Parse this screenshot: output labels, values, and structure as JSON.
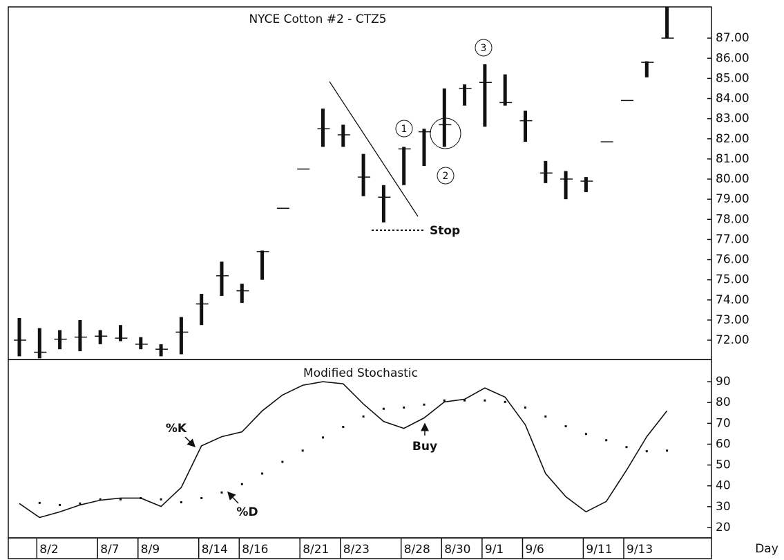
{
  "chart_data": [
    {
      "type": "ohlc",
      "title": "NYCE Cotton #2 - CTZ5",
      "color": "#111111",
      "high": [
        73.1,
        72.6,
        72.5,
        73.0,
        72.5,
        72.75,
        72.15,
        71.8,
        73.15,
        74.3,
        75.9,
        74.8,
        76.45,
        78.55,
        80.5,
        83.5,
        82.7,
        81.25,
        79.7,
        81.6,
        82.5,
        84.5,
        84.7,
        85.7,
        85.2,
        83.4,
        80.9,
        80.4,
        80.1,
        81.85,
        83.9,
        85.85,
        88.55
      ],
      "low": [
        71.2,
        71.1,
        71.55,
        71.45,
        71.8,
        71.95,
        71.55,
        71.2,
        71.3,
        72.75,
        74.2,
        73.85,
        75.0,
        78.55,
        80.5,
        81.6,
        81.6,
        79.15,
        77.85,
        79.7,
        80.65,
        81.6,
        83.65,
        82.6,
        83.65,
        81.85,
        79.8,
        79.0,
        79.35,
        81.85,
        83.9,
        85.05,
        87.0
      ],
      "close": [
        72.0,
        71.4,
        72.05,
        72.15,
        72.2,
        72.1,
        71.8,
        71.55,
        72.4,
        73.8,
        75.2,
        74.45,
        76.4,
        78.55,
        80.5,
        82.5,
        82.2,
        80.1,
        79.1,
        81.5,
        82.35,
        82.7,
        84.5,
        84.8,
        83.8,
        82.9,
        80.3,
        80.0,
        79.9,
        81.85,
        83.9,
        85.8,
        87.0
      ],
      "ylim": [
        71.04,
        88.55
      ],
      "yticks": [
        {
          "value": 72,
          "label": "72.00"
        },
        {
          "value": 73,
          "label": "73.00"
        },
        {
          "value": 74,
          "label": "74.00"
        },
        {
          "value": 75,
          "label": "75.00"
        },
        {
          "value": 76,
          "label": "76.00"
        },
        {
          "value": 77,
          "label": "77.00"
        },
        {
          "value": 78,
          "label": "78.00"
        },
        {
          "value": 79,
          "label": "79.00"
        },
        {
          "value": 80,
          "label": "80.00"
        },
        {
          "value": 81,
          "label": "81.00"
        },
        {
          "value": 82,
          "label": "82.00"
        },
        {
          "value": 83,
          "label": "83.00"
        },
        {
          "value": 84,
          "label": "84.00"
        },
        {
          "value": 85,
          "label": "85.00"
        },
        {
          "value": 86,
          "label": "86.00"
        },
        {
          "value": 87,
          "label": "87.00"
        }
      ],
      "annotations": [
        "1",
        "2",
        "3",
        "Stop"
      ]
    },
    {
      "type": "line",
      "title": "Modified Stochastic",
      "xlabel": "Day",
      "categories": [
        null,
        "8/2",
        null,
        null,
        "8/7",
        null,
        "8/9",
        null,
        null,
        "8/14",
        null,
        "8/16",
        null,
        null,
        "8/21",
        null,
        "8/23",
        null,
        null,
        "8/28",
        null,
        "8/30",
        null,
        "9/1",
        null,
        "9/6",
        null,
        null,
        "9/11",
        null,
        "9/13",
        null,
        null
      ],
      "series": [
        {
          "name": "%K",
          "color": "#111111",
          "values": [
            31.5,
            24.8,
            27.5,
            30.8,
            33.1,
            34.1,
            34.1,
            30.1,
            39.2,
            59.2,
            63.6,
            65.9,
            76,
            83.6,
            88.3,
            90,
            89,
            79.3,
            70.9,
            67.6,
            72.6,
            80.3,
            81.6,
            87,
            82.6,
            69.3,
            45.9,
            34.8,
            27.5,
            32.5,
            47.5,
            63.6,
            76
          ]
        },
        {
          "name": "%D",
          "color": "#111111",
          "values": [
            null,
            31.8,
            30.8,
            31.5,
            33.5,
            33.5,
            34.1,
            33.5,
            32.1,
            34.1,
            36.8,
            40.8,
            45.9,
            51.5,
            56.9,
            63.2,
            68.3,
            73.3,
            77,
            77.6,
            79,
            81,
            81,
            81,
            80.3,
            77.6,
            73.3,
            68.6,
            64.9,
            61.9,
            58.6,
            56.6,
            56.9
          ]
        }
      ],
      "ylim": [
        15,
        100
      ],
      "yticks": [
        20,
        30,
        40,
        50,
        60,
        70,
        80,
        90
      ],
      "annotations": [
        "Buy"
      ]
    }
  ]
}
